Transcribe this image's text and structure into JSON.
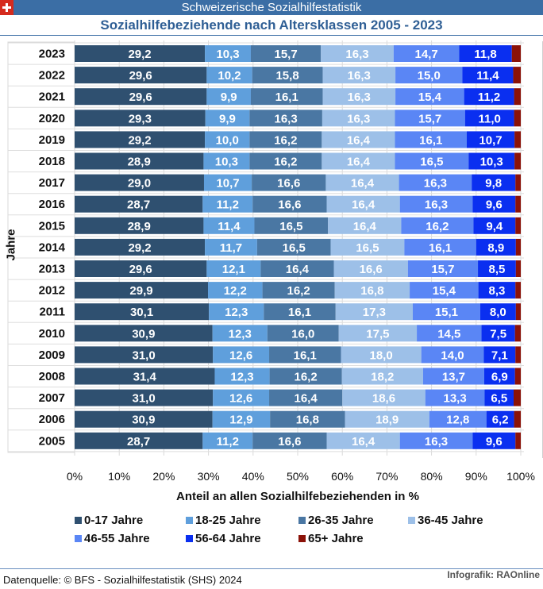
{
  "header": {
    "top_title": "Schweizerische Sozialhilfestatistik",
    "subtitle": "Sozialhilfebeziehende nach Altersklassen 2005 - 2023",
    "flag_icon": "swiss-flag-icon"
  },
  "footer": {
    "source": "Datenquelle: © BFS - Sozialhilfestatistik (SHS) 2024",
    "credit": "Infografik: RAOnline"
  },
  "chart_data": {
    "type": "bar",
    "orientation": "horizontal",
    "stacked": "percent",
    "title": "Sozialhilfebeziehende nach Altersklassen 2005 - 2023",
    "xlabel": "Anteil an allen Sozialhilfebeziehenden in %",
    "ylabel": "Jahre",
    "xlim": [
      0,
      100
    ],
    "xticks": [
      "0%",
      "10%",
      "20%",
      "30%",
      "40%",
      "50%",
      "60%",
      "70%",
      "80%",
      "90%",
      "100%"
    ],
    "grid": true,
    "legend_position": "bottom",
    "categories": [
      "2023",
      "2022",
      "2021",
      "2020",
      "2019",
      "2018",
      "2017",
      "2016",
      "2015",
      "2014",
      "2013",
      "2012",
      "2011",
      "2010",
      "2009",
      "2008",
      "2007",
      "2006",
      "2005"
    ],
    "series": [
      {
        "name": "0-17 Jahre",
        "color": "#2f5070",
        "labeled": true,
        "values": [
          29.2,
          29.6,
          29.6,
          29.3,
          29.2,
          28.9,
          29.0,
          28.7,
          28.9,
          29.2,
          29.6,
          29.9,
          30.1,
          30.9,
          31.0,
          31.4,
          31.0,
          30.9,
          28.7
        ]
      },
      {
        "name": "18-25 Jahre",
        "color": "#5f9fdc",
        "labeled": true,
        "values": [
          10.3,
          10.2,
          9.9,
          9.9,
          10.0,
          10.3,
          10.7,
          11.2,
          11.4,
          11.7,
          12.1,
          12.2,
          12.3,
          12.3,
          12.6,
          12.3,
          12.6,
          12.9,
          11.2
        ]
      },
      {
        "name": "26-35 Jahre",
        "color": "#4a77a3",
        "labeled": true,
        "values": [
          15.7,
          15.8,
          16.1,
          16.3,
          16.2,
          16.2,
          16.6,
          16.6,
          16.5,
          16.5,
          16.4,
          16.2,
          16.1,
          16.0,
          16.1,
          16.2,
          16.4,
          16.8,
          16.6
        ]
      },
      {
        "name": "36-45 Jahre",
        "color": "#9dc0e8",
        "labeled": true,
        "values": [
          16.3,
          16.3,
          16.3,
          16.3,
          16.4,
          16.4,
          16.4,
          16.4,
          16.4,
          16.5,
          16.6,
          16.8,
          17.3,
          17.5,
          18.0,
          18.2,
          18.6,
          18.9,
          16.4
        ]
      },
      {
        "name": "46-55 Jahre",
        "color": "#5a86f5",
        "labeled": true,
        "values": [
          14.7,
          15.0,
          15.4,
          15.7,
          16.1,
          16.5,
          16.3,
          16.3,
          16.2,
          16.1,
          15.7,
          15.4,
          15.1,
          14.5,
          14.0,
          13.7,
          13.3,
          12.8,
          16.3
        ]
      },
      {
        "name": "56-64 Jahre",
        "color": "#0a2ff0",
        "labeled": true,
        "values": [
          11.8,
          11.4,
          11.2,
          11.0,
          10.7,
          10.3,
          9.8,
          9.6,
          9.4,
          8.9,
          8.5,
          8.3,
          8.0,
          7.5,
          7.1,
          6.9,
          6.5,
          6.2,
          9.6
        ]
      },
      {
        "name": "65+ Jahre",
        "color": "#8b1208",
        "labeled": false,
        "values": [
          2.0,
          1.7,
          1.5,
          1.5,
          1.4,
          1.4,
          1.2,
          1.2,
          1.2,
          1.1,
          1.1,
          1.2,
          1.1,
          1.3,
          1.2,
          1.3,
          1.6,
          1.5,
          1.2
        ]
      }
    ]
  }
}
